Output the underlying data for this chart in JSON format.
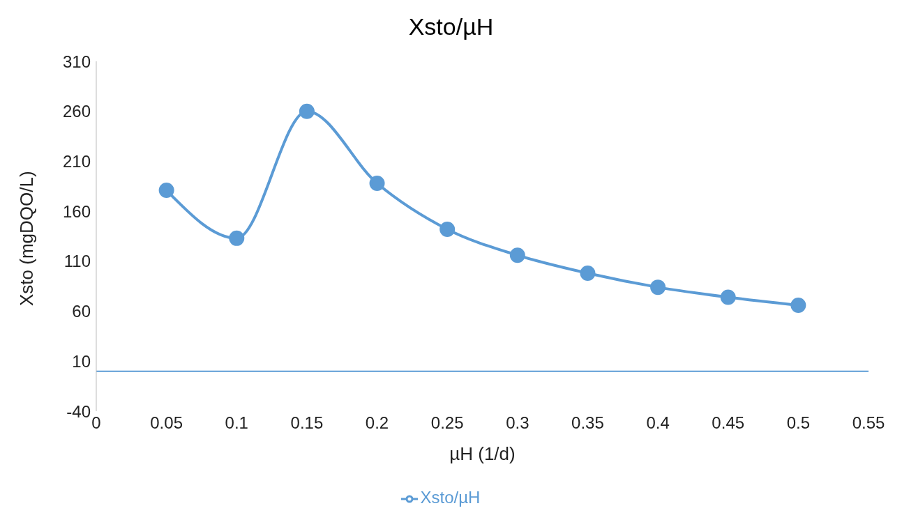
{
  "chart_data": {
    "type": "line",
    "title": "Xsto/µH",
    "xlabel": "µH (1/d)",
    "ylabel": "Xsto (mgDQO/L)",
    "x": [
      0.05,
      0.1,
      0.15,
      0.2,
      0.25,
      0.3,
      0.35,
      0.4,
      0.45,
      0.5
    ],
    "series": [
      {
        "name": "Xsto/µH",
        "color": "#5b9bd5",
        "values": [
          181,
          133,
          260,
          188,
          142,
          116,
          98,
          84,
          74,
          66
        ]
      }
    ],
    "xlim": [
      0,
      0.55
    ],
    "xticks": [
      0,
      0.05,
      0.1,
      0.15,
      0.2,
      0.25,
      0.3,
      0.35,
      0.4,
      0.45,
      0.5,
      0.55
    ],
    "ylim": [
      -40,
      310
    ],
    "yticks": [
      -40,
      10,
      60,
      110,
      160,
      210,
      260,
      310
    ],
    "grid": false,
    "legend": "bottom",
    "marker": "circle",
    "line_style": "solid"
  }
}
